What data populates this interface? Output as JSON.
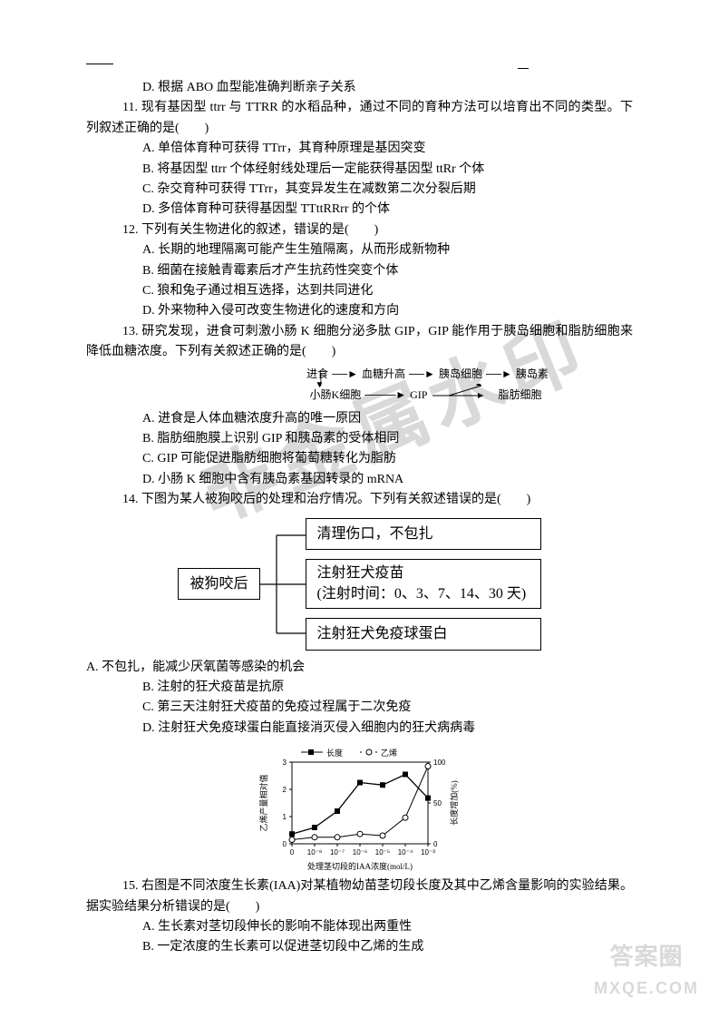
{
  "q10": {
    "opt_d": "D. 根据 ABO 血型能准确判断亲子关系"
  },
  "q11": {
    "stem": "11. 现有基因型 ttrr 与 TTRR 的水稻品种，通过不同的育种方法可以培育出不同的类型。下列叙述正确的是(　　)",
    "a": "A.  单倍体育种可获得 TTrr，其育种原理是基因突变",
    "b": "B.  将基因型 ttrr 个体经射线处理后一定能获得基因型 ttRr 个体",
    "c": "C.  杂交育种可获得 TTrr，其变异发生在减数第二次分裂后期",
    "d": "D.  多倍体育种可获得基因型 TTttRRrr 的个体"
  },
  "q12": {
    "stem": "12. 下列有关生物进化的叙述，错误的是(　　)",
    "a": "A. 长期的地理隔离可能产生生殖隔离，从而形成新物种",
    "b": "B. 细菌在接触青霉素后才产生抗药性突变个体",
    "c": "C. 狼和兔子通过相互选择，达到共同进化",
    "d": "D. 外来物种入侵可改变生物进化的速度和方向"
  },
  "q13": {
    "stem": "13. 研究发现，进食可刺激小肠 K 细胞分泌多肽 GIP，GIP 能作用于胰岛细胞和脂肪细胞来降低血糖浓度。下列有关叙述正确的是(　　)",
    "diagram": {
      "row1": [
        "进食",
        "血糖升高",
        "胰岛细胞",
        "胰岛素"
      ],
      "row2": [
        "小肠K细胞",
        "GIP",
        "脂肪细胞"
      ],
      "arrow": "→"
    },
    "a": "A. 进食是人体血糖浓度升高的唯一原因",
    "b": "B. 脂肪细胞膜上识别 GIP 和胰岛素的受体相同",
    "c": "C. GIP 可能促进脂肪细胞将葡萄糖转化为脂肪",
    "d": "D. 小肠 K 细胞中含有胰岛素基因转录的 mRNA"
  },
  "q14": {
    "stem": "14. 下图为某人被狗咬后的处理和治疗情况。下列有关叙述错误的是(　　)",
    "box_main": "被狗咬后",
    "branch1": "清理伤口，不包扎",
    "branch2_line1": "注射狂犬疫苗",
    "branch2_line2": "(注射时间：0、3、7、14、30 天)",
    "branch3": "注射狂犬免疫球蛋白",
    "a": "A. 不包扎，能减少厌氧菌等感染的机会",
    "b": "B. 注射的狂犬疫苗是抗原",
    "c": "C. 第三天注射狂犬疫苗的免疫过程属于二次免疫",
    "d": "D. 注射狂犬免疫球蛋白能直接消灭侵入细胞内的狂犬病病毒"
  },
  "q15": {
    "chart": {
      "type": "line+scatter",
      "title_legend": [
        "长度",
        "乙烯"
      ],
      "marker_length": "■",
      "marker_eth": "○",
      "x_label": "处理茎切段的IAA浓度(mol/L)",
      "y_left_label": "乙烯产量相对值",
      "y_right_label": "长度增加(%)",
      "x_ticks": [
        "0",
        "10⁻⁸",
        "10⁻⁷",
        "10⁻⁶",
        "10⁻⁵",
        "10⁻⁴",
        "10⁻³"
      ],
      "y_left_ticks": [
        0,
        1,
        2,
        3
      ],
      "y_right_ticks": [
        0,
        50,
        100
      ],
      "series_length_y": [
        0.12,
        0.2,
        0.4,
        0.75,
        0.72,
        0.85,
        0.56
      ],
      "series_eth_y": [
        0.05,
        0.08,
        0.08,
        0.12,
        0.1,
        0.32,
        0.95
      ],
      "line_color": "#000000",
      "background": "#ffffff",
      "font_size_axis": 9
    },
    "stem": "15. 右图是不同浓度生长素(IAA)对某植物幼苗茎切段长度及其中乙烯含量影响的实验结果。据实验结果分析错误的是(　　)",
    "a": "A.  生长素对茎切段伸长的影响不能体现出两重性",
    "b": "B.  一定浓度的生长素可以促进茎切段中乙烯的生成"
  },
  "watermarks": {
    "big_text": "非金属水印",
    "logo_top": "答案圈",
    "logo_bottom": "MXQE.COM"
  }
}
